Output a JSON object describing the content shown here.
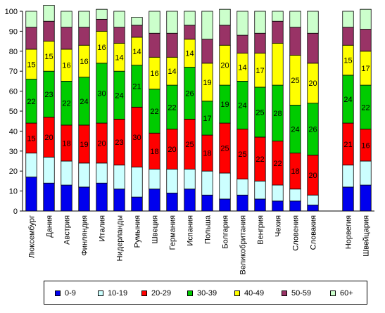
{
  "chart_data": {
    "type": "bar",
    "stacked": true,
    "categories": [
      "Люксембург",
      "Дания",
      "Австрия",
      "Финляндия",
      "Италия",
      "Нидерланды",
      "Румыния",
      "Швеция",
      "Германия",
      "Испания",
      "Польша",
      "Болгария",
      "Великобритания",
      "Венгрия",
      "Чехия",
      "Словения",
      "Словакия",
      "Норвегия",
      "Швейцария"
    ],
    "series": [
      {
        "name": "0-9",
        "color": "#0000ee",
        "values": [
          17,
          14,
          13,
          12,
          14,
          11,
          7,
          11,
          9,
          11,
          8,
          6,
          8,
          6,
          5,
          5,
          3,
          12,
          13
        ]
      },
      {
        "name": "10-19",
        "color": "#ccffff",
        "values": [
          12,
          13,
          12,
          12,
          10,
          12,
          15,
          10,
          12,
          10,
          12,
          13,
          8,
          9,
          8,
          6,
          5,
          11,
          12
        ]
      },
      {
        "name": "20-29",
        "color": "#ff0000",
        "values": [
          15,
          20,
          18,
          19,
          20,
          23,
          30,
          18,
          20,
          25,
          18,
          25,
          25,
          22,
          22,
          18,
          20,
          21,
          16
        ]
      },
      {
        "name": "30-39",
        "color": "#00cc00",
        "values": [
          22,
          23,
          22,
          24,
          30,
          24,
          21,
          22,
          22,
          26,
          17,
          19,
          24,
          25,
          28,
          24,
          26,
          24,
          22
        ]
      },
      {
        "name": "40-49",
        "color": "#ffff00",
        "values": [
          15,
          15,
          16,
          16,
          16,
          14,
          14,
          16,
          14,
          14,
          19,
          20,
          14,
          17,
          21,
          25,
          20,
          15,
          17
        ]
      },
      {
        "name": "50-59",
        "color": "#993366",
        "values": [
          11,
          10,
          11,
          9,
          6,
          8,
          6,
          12,
          12,
          7,
          12,
          10,
          9,
          10,
          11,
          14,
          15,
          9,
          11
        ]
      },
      {
        "name": "60+",
        "color": "#ccffcc",
        "values": [
          8,
          8,
          8,
          8,
          5,
          8,
          4,
          11,
          11,
          7,
          14,
          8,
          12,
          11,
          5,
          8,
          11,
          8,
          10
        ]
      }
    ],
    "data_labels": {
      "20-29": [
        15,
        20,
        18,
        19,
        20,
        23,
        30,
        18,
        20,
        25,
        18,
        25,
        25,
        22,
        22,
        18,
        20,
        21,
        16
      ],
      "30-39": [
        22,
        23,
        22,
        24,
        30,
        24,
        21,
        22,
        22,
        26,
        17,
        19,
        24,
        25,
        28,
        24,
        26,
        24,
        22
      ],
      "40-49": [
        15,
        15,
        16,
        16,
        16,
        14,
        14,
        16,
        14,
        14,
        19,
        20,
        14,
        17,
        "",
        25,
        20,
        15,
        17
      ]
    },
    "gap_after_index": 16,
    "ylim": [
      0,
      100
    ],
    "yticks": [
      0,
      10,
      20,
      30,
      40,
      50,
      60,
      70,
      80,
      90,
      100
    ],
    "grid": false,
    "legend_position": "bottom",
    "title": "",
    "xlabel": "",
    "ylabel": ""
  }
}
